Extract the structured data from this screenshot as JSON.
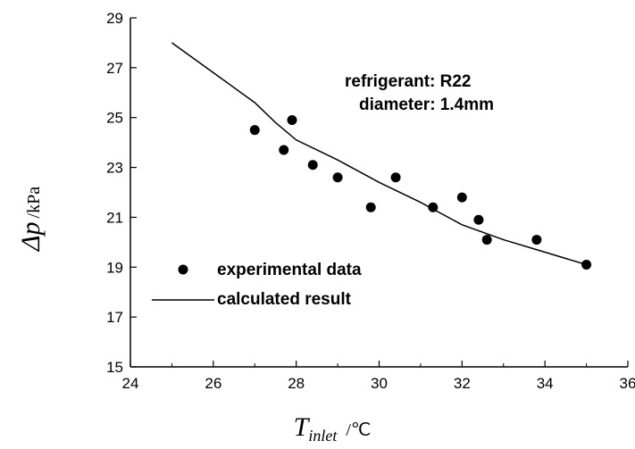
{
  "chart_data": {
    "type": "scatter",
    "title": "",
    "xlabel": {
      "symbol": "T",
      "subscript": "inlet",
      "unit": "/℃"
    },
    "ylabel": {
      "symbol": "Δp",
      "unit": "/kPa"
    },
    "xlim": [
      24,
      36
    ],
    "ylim": [
      15,
      29
    ],
    "x_ticks": [
      24,
      26,
      28,
      30,
      32,
      34,
      36
    ],
    "y_ticks": [
      15,
      17,
      19,
      21,
      23,
      25,
      27,
      29
    ],
    "grid": false,
    "legend_position": "bottom-left",
    "annotations": [
      "refrigerant: R22",
      "diameter: 1.4mm"
    ],
    "series": [
      {
        "name": "experimental data",
        "kind": "scatter",
        "x": [
          27.0,
          27.7,
          27.9,
          28.4,
          29.0,
          29.8,
          30.4,
          31.3,
          32.0,
          32.4,
          32.6,
          33.8,
          35.0
        ],
        "y": [
          24.5,
          23.7,
          24.9,
          23.1,
          22.6,
          21.4,
          22.6,
          21.4,
          21.8,
          20.9,
          20.1,
          20.1,
          19.1
        ]
      },
      {
        "name": "calculated result",
        "kind": "line",
        "x": [
          25.0,
          26.0,
          27.0,
          27.5,
          28.0,
          29.0,
          30.0,
          31.0,
          32.0,
          33.0,
          34.0,
          35.0
        ],
        "y": [
          28.0,
          26.8,
          25.6,
          24.8,
          24.1,
          23.3,
          22.4,
          21.6,
          20.7,
          20.1,
          19.6,
          19.1
        ]
      }
    ]
  }
}
